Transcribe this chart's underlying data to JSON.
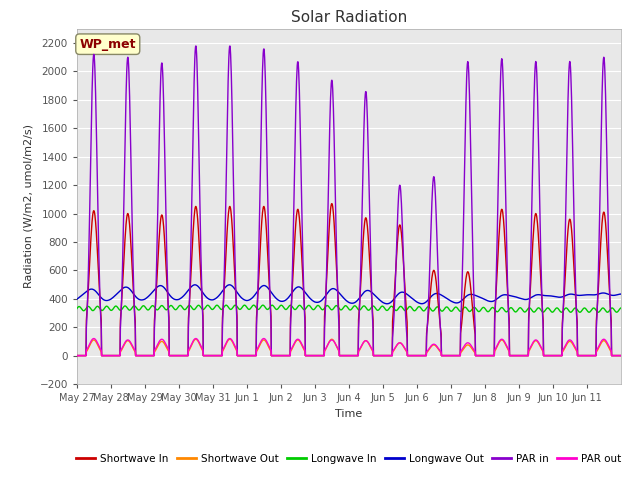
{
  "title": "Solar Radiation",
  "ylabel": "Radiation (W/m2, umol/m2/s)",
  "xlabel": "Time",
  "ylim": [
    -200,
    2300
  ],
  "yticks": [
    -200,
    0,
    200,
    400,
    600,
    800,
    1000,
    1200,
    1400,
    1600,
    1800,
    2000,
    2200
  ],
  "bg_color": "#e8e8e8",
  "fig_color": "#ffffff",
  "legend_entries": [
    "Shortwave In",
    "Shortwave Out",
    "Longwave In",
    "Longwave Out",
    "PAR in",
    "PAR out"
  ],
  "legend_colors": [
    "#cc0000",
    "#ff8800",
    "#00cc00",
    "#0000cc",
    "#8800cc",
    "#ff00cc"
  ],
  "annotation_text": "WP_met",
  "annotation_color": "#8B0000",
  "annotation_bg": "#ffffcc",
  "x_tick_labels": [
    "May 27",
    "May 28",
    "May 29",
    "May 30",
    "May 31",
    "Jun 1",
    "Jun 2",
    "Jun 3",
    "Jun 4",
    "Jun 5",
    "Jun 6",
    "Jun 7",
    "Jun 8",
    "Jun 9",
    "Jun 10",
    "Jun 11"
  ],
  "line_width": 1.0
}
